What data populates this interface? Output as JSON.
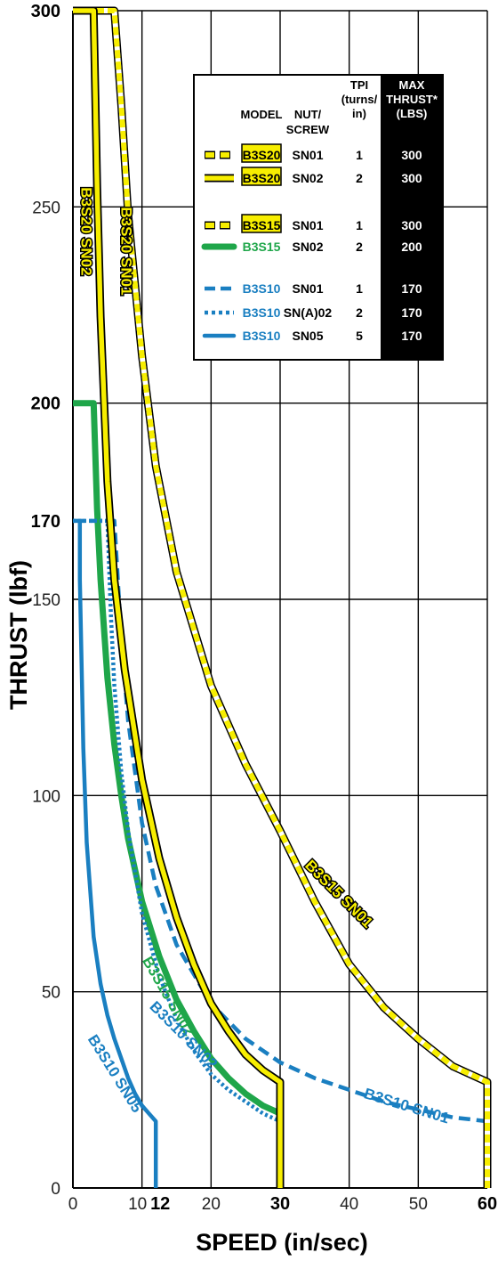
{
  "chart_data": {
    "type": "line",
    "xlabel": "SPEED (in/sec)",
    "ylabel": "THRUST (lbf)",
    "xlim": [
      0,
      60
    ],
    "ylim": [
      0,
      300
    ],
    "grid": true,
    "x_ticks": [
      "0",
      "10",
      "12",
      "20",
      "30",
      "40",
      "50",
      "60"
    ],
    "y_ticks": [
      "0",
      "50",
      "100",
      "150",
      "170",
      "200",
      "250",
      "300"
    ],
    "bold_x_ticks": [
      "12",
      "30",
      "60"
    ],
    "bold_y_ticks": [
      "170",
      "200",
      "300"
    ],
    "legend": {
      "placement": "top-right",
      "headers": {
        "model": "MODEL",
        "nut_line1": "NUT/",
        "nut_line2": "SCREW",
        "tpi_line1": "TPI",
        "tpi_line2": "(turns/",
        "tpi_line3": "in)",
        "max_line1": "MAX",
        "max_line2": "THRUST*",
        "max_line3": "(LBS)"
      },
      "rows": [
        {
          "model": "B3S20",
          "nut": "SN01",
          "tpi": "1",
          "max": "300",
          "color": "#f7ee00",
          "style": "dashed-double",
          "highlight": true
        },
        {
          "model": "B3S20",
          "nut": "SN02",
          "tpi": "2",
          "max": "300",
          "color": "#f7ee00",
          "style": "solid-double",
          "highlight": true
        },
        {
          "model": "B3S15",
          "nut": "SN01",
          "tpi": "1",
          "max": "300",
          "color": "#f7ee00",
          "style": "dashed-double",
          "highlight": true
        },
        {
          "model": "B3S15",
          "nut": "SN02",
          "tpi": "2",
          "max": "200",
          "color": "#1fa64a",
          "style": "solid",
          "highlight": false
        },
        {
          "model": "B3S10",
          "nut": "SN01",
          "tpi": "1",
          "max": "170",
          "color": "#1a7fc1",
          "style": "dashed",
          "highlight": false
        },
        {
          "model": "B3S10",
          "nut": "SN(A)02",
          "tpi": "2",
          "max": "170",
          "color": "#1a7fc1",
          "style": "dotted",
          "highlight": false
        },
        {
          "model": "B3S10",
          "nut": "SN05",
          "tpi": "5",
          "max": "170",
          "color": "#1a7fc1",
          "style": "solid",
          "highlight": false
        }
      ]
    },
    "series": [
      {
        "name": "B3S20 SN01",
        "color": "#f7ee00",
        "style": "dashed-double",
        "x": [
          0,
          6,
          7,
          8,
          10,
          12,
          15,
          20,
          25,
          30,
          35,
          40,
          45,
          50,
          55,
          60,
          60
        ],
        "y": [
          300,
          300,
          276,
          248,
          212,
          184,
          157,
          128,
          108,
          91,
          73,
          57,
          46,
          38,
          31,
          27,
          0
        ]
      },
      {
        "name": "B3S15 SN01",
        "color": "#f7ee00",
        "style": "dashed-double",
        "hidden_under": "B3S20 SN01",
        "x": [],
        "y": []
      },
      {
        "name": "B3S20 SN02",
        "color": "#f7ee00",
        "style": "solid-double",
        "x": [
          0,
          3,
          3.5,
          4,
          5,
          6,
          7.5,
          10,
          12.5,
          15,
          17.5,
          20,
          22.5,
          25,
          27.5,
          30,
          30
        ],
        "y": [
          300,
          300,
          255,
          222,
          180,
          155,
          132,
          104,
          84,
          69,
          57,
          47,
          40,
          34,
          30,
          27,
          0
        ]
      },
      {
        "name": "B3S15 SN02",
        "color": "#1fa64a",
        "style": "solid",
        "x": [
          0,
          3,
          3.5,
          4,
          5,
          6,
          7,
          8,
          10,
          12.5,
          15,
          17.5,
          20,
          22.5,
          25,
          27.5,
          30
        ],
        "y": [
          200,
          200,
          173,
          155,
          130,
          113,
          100,
          89,
          73,
          59,
          48,
          40,
          33,
          28,
          24,
          21,
          19
        ]
      },
      {
        "name": "B3S10 SN01",
        "color": "#1a7fc1",
        "style": "dashed",
        "x": [
          0,
          6,
          6.5,
          7,
          8,
          10,
          12,
          15,
          20,
          25,
          30,
          35,
          40,
          45,
          50,
          55,
          60,
          60
        ],
        "y": [
          170,
          170,
          155,
          140,
          119,
          93,
          77,
          62,
          47,
          38,
          32,
          28,
          25,
          22,
          20,
          18,
          17,
          0
        ]
      },
      {
        "name": "B3S10 SN(A)02",
        "color": "#1a7fc1",
        "style": "dotted",
        "x": [
          0,
          5,
          5.5,
          6,
          7,
          8,
          10,
          12.5,
          15,
          17.5,
          20,
          22.5,
          25,
          27.5,
          30,
          30
        ],
        "y": [
          170,
          170,
          146,
          128,
          106,
          91,
          70,
          54,
          43,
          35,
          29,
          25,
          22,
          19,
          17,
          0
        ]
      },
      {
        "name": "B3S10 SN05",
        "color": "#1a7fc1",
        "style": "solid",
        "x": [
          1,
          1,
          1.5,
          2,
          3,
          4,
          5,
          6,
          7,
          8,
          9,
          10,
          11,
          12,
          12
        ],
        "y": [
          170,
          155,
          112,
          88,
          64,
          52,
          44,
          38,
          33,
          28,
          24,
          21,
          19,
          17,
          0
        ]
      }
    ],
    "curve_labels": [
      {
        "text": "B3S20 SN02",
        "color": "#f7ee00",
        "highlight": true
      },
      {
        "text": "B3S20 SN01",
        "color": "#f7ee00",
        "highlight": true
      },
      {
        "text": "B3S15 SN01",
        "color": "#f7ee00",
        "highlight": true
      },
      {
        "text": "B3S15 SN02",
        "color": "#1fa64a",
        "highlight": false
      },
      {
        "text": "B3S10 SN01",
        "color": "#1a7fc1",
        "highlight": false
      },
      {
        "text": "B3S10 SN02",
        "color": "#1a7fc1",
        "highlight": false
      },
      {
        "text": "B3S10 SN05",
        "color": "#1a7fc1",
        "highlight": false
      }
    ]
  }
}
